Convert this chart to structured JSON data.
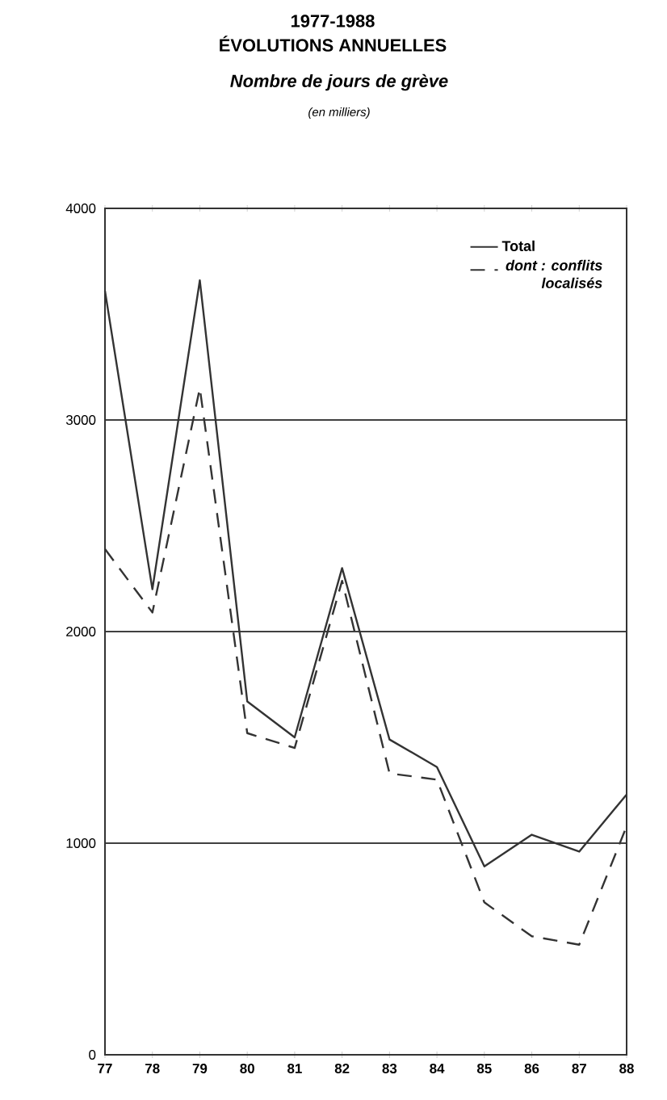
{
  "chart_data": {
    "type": "line",
    "title": "1977-1988",
    "subtitle": "ÉVOLUTIONS ANNUELLES",
    "annotations": [
      "Nombre de jours de grève",
      "(en milliers)"
    ],
    "categories": [
      "77",
      "78",
      "79",
      "80",
      "81",
      "82",
      "83",
      "84",
      "85",
      "86",
      "87",
      "88"
    ],
    "series": [
      {
        "name": "Total",
        "color": "#333333",
        "line_style": "solid",
        "values": [
          3610,
          2200,
          3660,
          1670,
          1500,
          2300,
          1490,
          1360,
          890,
          1040,
          960,
          1230
        ]
      },
      {
        "name": "dont : conflits localisés",
        "color": "#333333",
        "line_style": "dashed",
        "values": [
          2390,
          2090,
          3150,
          1520,
          1450,
          2240,
          1330,
          1300,
          720,
          560,
          520,
          1080
        ]
      }
    ],
    "ylim": [
      0,
      4000
    ],
    "yticks": [
      0,
      1000,
      2000,
      3000,
      4000
    ],
    "grid": "y",
    "legend": "top right",
    "marker": "none"
  }
}
